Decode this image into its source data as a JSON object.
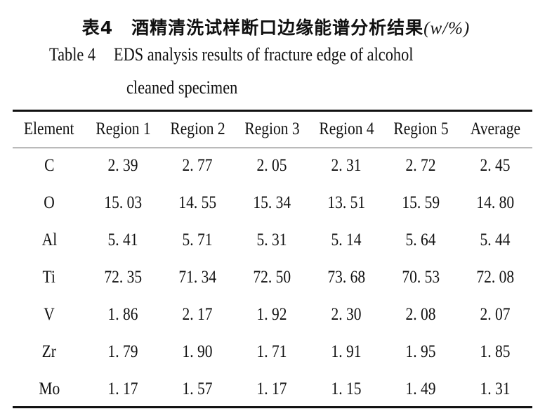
{
  "caption": {
    "cn_label": "表4",
    "cn_text": "酒精清洗试样断口边缘能谱分析结果",
    "cn_unit": "(w/%)",
    "en_label": "Table 4",
    "en_line1": "EDS analysis results of fracture edge of alcohol",
    "en_line2": "cleaned specimen"
  },
  "table": {
    "headers": [
      "Element",
      "Region 1",
      "Region 2",
      "Region 3",
      "Region 4",
      "Region 5",
      "Average"
    ],
    "rows": [
      [
        "C",
        "2. 39",
        "2. 77",
        "2. 05",
        "2. 31",
        "2. 72",
        "2. 45"
      ],
      [
        "O",
        "15. 03",
        "14. 55",
        "15. 34",
        "13. 51",
        "15. 59",
        "14. 80"
      ],
      [
        "Al",
        "5. 41",
        "5. 71",
        "5. 31",
        "5. 14",
        "5. 64",
        "5. 44"
      ],
      [
        "Ti",
        "72. 35",
        "71. 34",
        "72. 50",
        "73. 68",
        "70. 53",
        "72. 08"
      ],
      [
        "V",
        "1. 86",
        "2. 17",
        "1. 92",
        "2. 30",
        "2. 08",
        "2. 07"
      ],
      [
        "Zr",
        "1. 79",
        "1. 90",
        "1. 71",
        "1. 91",
        "1. 95",
        "1. 85"
      ],
      [
        "Mo",
        "1. 17",
        "1. 57",
        "1. 17",
        "1. 15",
        "1. 49",
        "1. 31"
      ]
    ]
  }
}
